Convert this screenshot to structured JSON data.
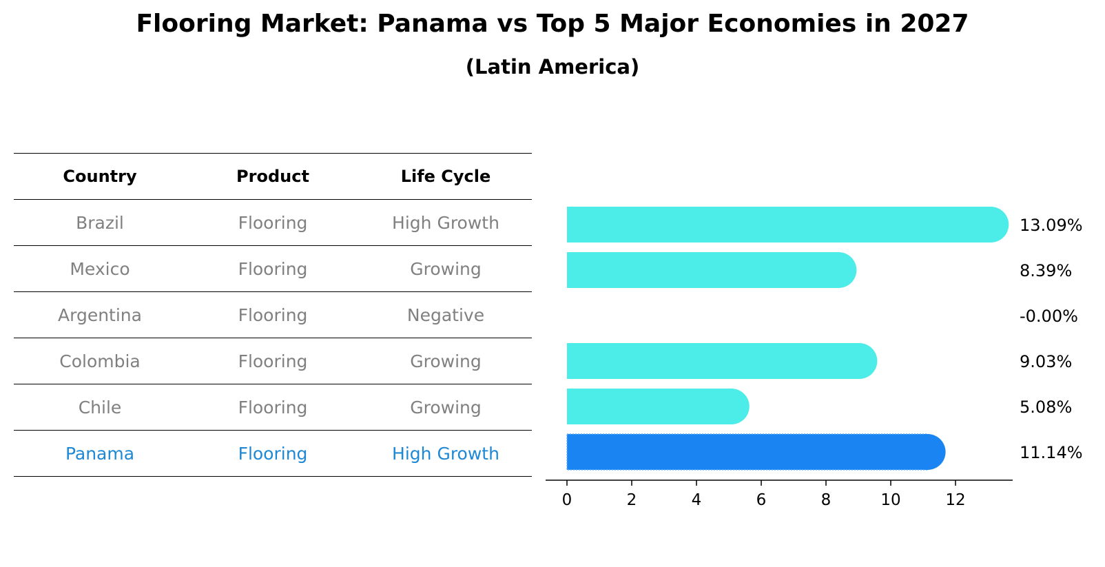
{
  "title": "Flooring Market: Panama vs Top 5 Major Economies in 2027",
  "subtitle": "(Latin America)",
  "table": {
    "headers": [
      "Country",
      "Product",
      "Life Cycle"
    ],
    "rows": [
      [
        "Brazil",
        "Flooring",
        "High Growth"
      ],
      [
        "Mexico",
        "Flooring",
        "Growing"
      ],
      [
        "Argentina",
        "Flooring",
        "Negative"
      ],
      [
        "Colombia",
        "Flooring",
        "Growing"
      ],
      [
        "Chile",
        "Flooring",
        "Growing"
      ],
      [
        "Panama",
        "Flooring",
        "High Growth"
      ]
    ]
  },
  "colors": {
    "bar": "#4cede8",
    "highlight": "#1a84f2",
    "highlight_text": "#1e88d4",
    "muted_text": "#808080"
  },
  "chart_data": {
    "type": "bar",
    "orientation": "horizontal",
    "categories": [
      "Brazil",
      "Mexico",
      "Argentina",
      "Colombia",
      "Chile",
      "Panama"
    ],
    "values": [
      13.09,
      8.39,
      -0.0,
      9.03,
      5.08,
      11.14
    ],
    "value_labels": [
      "13.09%",
      "8.39%",
      "-0.00%",
      "9.03%",
      "5.08%",
      "11.14%"
    ],
    "highlight": "Panama",
    "xticks": [
      0,
      2,
      4,
      6,
      8,
      10,
      12
    ],
    "xlim": [
      -0.7,
      13.8
    ],
    "xlabel": "",
    "ylabel": ""
  }
}
